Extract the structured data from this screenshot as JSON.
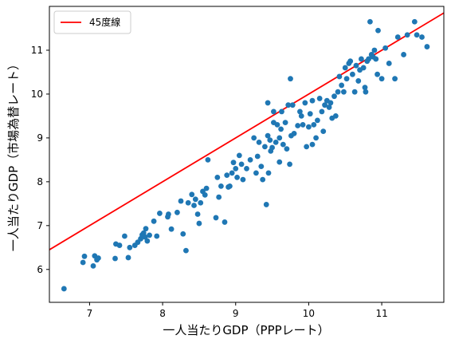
{
  "chart_data": {
    "type": "scatter",
    "xlabel": "一人当たりGDP（PPPレート）",
    "ylabel": "一人当たりGDP（市場為替レート）",
    "xlim": [
      6.45,
      11.85
    ],
    "ylim": [
      5.25,
      12.0
    ],
    "xticks": [
      7,
      8,
      9,
      10,
      11
    ],
    "yticks": [
      6,
      7,
      8,
      9,
      10,
      11
    ],
    "grid": false,
    "legend": {
      "position": "upper-left",
      "entries": [
        {
          "label": "45度線",
          "color": "#ff0000"
        }
      ]
    },
    "reference_line": {
      "label": "45度線",
      "slope": 1,
      "intercept": 0,
      "color": "#ff0000"
    },
    "marker_color": "#1f77b4",
    "points": [
      [
        6.65,
        5.56
      ],
      [
        6.91,
        6.16
      ],
      [
        6.93,
        6.3
      ],
      [
        7.05,
        6.08
      ],
      [
        7.07,
        6.31
      ],
      [
        7.1,
        6.22
      ],
      [
        7.12,
        6.26
      ],
      [
        7.35,
        6.25
      ],
      [
        7.36,
        6.58
      ],
      [
        7.41,
        6.55
      ],
      [
        7.48,
        6.76
      ],
      [
        7.53,
        6.27
      ],
      [
        7.55,
        6.5
      ],
      [
        7.62,
        6.55
      ],
      [
        7.66,
        6.62
      ],
      [
        7.7,
        6.7
      ],
      [
        7.72,
        6.79
      ],
      [
        7.74,
        6.83
      ],
      [
        7.76,
        6.74
      ],
      [
        7.77,
        6.93
      ],
      [
        7.79,
        6.65
      ],
      [
        7.82,
        6.78
      ],
      [
        7.88,
        7.1
      ],
      [
        7.92,
        6.76
      ],
      [
        7.96,
        7.28
      ],
      [
        8.07,
        7.2
      ],
      [
        8.08,
        7.26
      ],
      [
        8.12,
        6.92
      ],
      [
        8.2,
        7.3
      ],
      [
        8.25,
        7.56
      ],
      [
        8.28,
        6.81
      ],
      [
        8.32,
        6.43
      ],
      [
        8.35,
        7.52
      ],
      [
        8.4,
        7.71
      ],
      [
        8.43,
        7.46
      ],
      [
        8.45,
        7.6
      ],
      [
        8.48,
        7.26
      ],
      [
        8.5,
        7.05
      ],
      [
        8.52,
        7.52
      ],
      [
        8.55,
        7.78
      ],
      [
        8.58,
        7.7
      ],
      [
        8.6,
        7.85
      ],
      [
        8.62,
        8.5
      ],
      [
        8.73,
        7.18
      ],
      [
        8.77,
        7.65
      ],
      [
        8.8,
        7.9
      ],
      [
        8.85,
        7.08
      ],
      [
        8.88,
        8.15
      ],
      [
        8.9,
        7.88
      ],
      [
        8.92,
        7.9
      ],
      [
        8.95,
        8.2
      ],
      [
        8.97,
        8.44
      ],
      [
        9.0,
        8.3
      ],
      [
        9.02,
        8.1
      ],
      [
        9.05,
        8.6
      ],
      [
        9.1,
        8.05
      ],
      [
        9.15,
        8.3
      ],
      [
        9.2,
        8.5
      ],
      [
        9.25,
        9.0
      ],
      [
        9.28,
        8.2
      ],
      [
        9.3,
        8.58
      ],
      [
        9.32,
        8.9
      ],
      [
        9.35,
        8.35
      ],
      [
        9.37,
        8.05
      ],
      [
        9.4,
        8.8
      ],
      [
        9.42,
        7.48
      ],
      [
        9.44,
        9.05
      ],
      [
        9.45,
        8.2
      ],
      [
        9.47,
        8.95
      ],
      [
        9.48,
        8.7
      ],
      [
        9.5,
        8.78
      ],
      [
        9.52,
        9.35
      ],
      [
        9.55,
        8.9
      ],
      [
        9.57,
        9.3
      ],
      [
        9.6,
        8.45
      ],
      [
        9.62,
        9.2
      ],
      [
        9.63,
        9.6
      ],
      [
        9.65,
        8.85
      ],
      [
        9.68,
        9.35
      ],
      [
        9.7,
        8.75
      ],
      [
        9.72,
        9.75
      ],
      [
        9.74,
        8.4
      ],
      [
        9.76,
        9.05
      ],
      [
        9.78,
        9.75
      ],
      [
        9.8,
        9.1
      ],
      [
        9.85,
        9.28
      ],
      [
        9.88,
        9.6
      ],
      [
        9.9,
        9.5
      ],
      [
        9.92,
        9.3
      ],
      [
        9.95,
        9.8
      ],
      [
        9.97,
        8.8
      ],
      [
        10.0,
        9.25
      ],
      [
        10.02,
        9.55
      ],
      [
        10.05,
        9.85
      ],
      [
        10.07,
        9.3
      ],
      [
        10.1,
        9.0
      ],
      [
        10.12,
        9.4
      ],
      [
        10.15,
        9.9
      ],
      [
        10.18,
        9.6
      ],
      [
        10.2,
        9.15
      ],
      [
        10.22,
        9.75
      ],
      [
        10.25,
        9.85
      ],
      [
        10.28,
        9.7
      ],
      [
        10.3,
        9.8
      ],
      [
        10.32,
        9.45
      ],
      [
        10.35,
        9.95
      ],
      [
        10.37,
        9.5
      ],
      [
        10.4,
        10.05
      ],
      [
        10.42,
        10.4
      ],
      [
        10.45,
        10.2
      ],
      [
        10.48,
        10.05
      ],
      [
        10.5,
        10.6
      ],
      [
        10.52,
        10.35
      ],
      [
        10.55,
        10.7
      ],
      [
        10.57,
        10.75
      ],
      [
        10.6,
        10.45
      ],
      [
        10.63,
        10.05
      ],
      [
        10.65,
        10.65
      ],
      [
        10.68,
        10.3
      ],
      [
        10.7,
        10.55
      ],
      [
        10.72,
        10.8
      ],
      [
        10.75,
        10.6
      ],
      [
        10.77,
        10.15
      ],
      [
        10.78,
        10.05
      ],
      [
        10.8,
        10.75
      ],
      [
        10.82,
        10.8
      ],
      [
        10.84,
        11.65
      ],
      [
        10.86,
        10.9
      ],
      [
        10.88,
        10.85
      ],
      [
        10.9,
        11.0
      ],
      [
        10.92,
        10.8
      ],
      [
        10.94,
        10.45
      ],
      [
        11.0,
        10.35
      ],
      [
        11.05,
        11.05
      ],
      [
        11.1,
        10.7
      ],
      [
        11.18,
        10.35
      ],
      [
        11.22,
        11.3
      ],
      [
        11.3,
        10.9
      ],
      [
        11.35,
        11.35
      ],
      [
        11.45,
        11.65
      ],
      [
        11.48,
        11.35
      ],
      [
        11.55,
        11.3
      ],
      [
        11.62,
        11.08
      ],
      [
        9.44,
        9.8
      ],
      [
        9.75,
        10.35
      ],
      [
        9.52,
        9.6
      ],
      [
        10.95,
        11.45
      ],
      [
        10.05,
        8.85
      ],
      [
        9.6,
        9.0
      ],
      [
        8.75,
        8.1
      ],
      [
        9.08,
        8.4
      ]
    ]
  }
}
